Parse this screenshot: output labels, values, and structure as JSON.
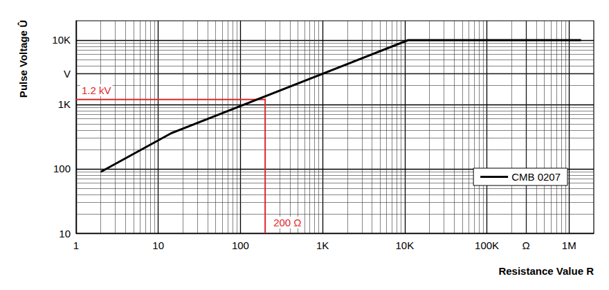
{
  "chart_data": {
    "type": "line",
    "log": true,
    "grid": true,
    "legend": "lower right",
    "x": [
      2,
      14.5,
      11000,
      1400000
    ],
    "series": [
      {
        "name": "CMB 0207",
        "color": "#000000",
        "values": [
          90,
          360,
          10000,
          10000
        ]
      }
    ],
    "xlim": [
      1,
      2000000
    ],
    "ylim": [
      10,
      20000
    ],
    "xticks": [
      1,
      10,
      100,
      {
        "value": 1000,
        "label": "1K"
      },
      {
        "value": 10000,
        "label": "10K"
      },
      {
        "value": 100000,
        "label": "100K"
      },
      {
        "value": 300000,
        "label": "Ω"
      },
      {
        "value": 1000000,
        "label": "1M"
      }
    ],
    "yticks": [
      10,
      100,
      {
        "value": 1000,
        "label": "1K"
      },
      {
        "value": 3000,
        "label": "V"
      },
      {
        "value": 10000,
        "label": "10K"
      }
    ],
    "xlabel": "Resistance Value R",
    "ylabel": "Pulse Voltage Û",
    "annotation": {
      "x": 200,
      "y": 1200,
      "x_text": "200 Ω",
      "y_text": "1.2 kV",
      "color": "#e0262b"
    }
  }
}
